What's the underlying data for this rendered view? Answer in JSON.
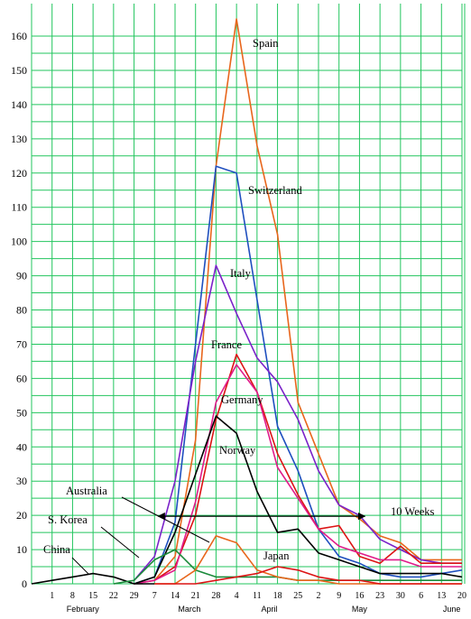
{
  "chart_data": {
    "type": "line",
    "title": "",
    "xlabel": "",
    "ylabel": "",
    "ylim": [
      0,
      165
    ],
    "yticks": [
      0,
      10,
      20,
      30,
      40,
      50,
      60,
      70,
      80,
      90,
      100,
      110,
      120,
      130,
      140,
      150,
      160
    ],
    "grid": true,
    "grid_color": "#22c55e",
    "x_tick_labels": [
      "1",
      "8",
      "15",
      "22",
      "29",
      "7",
      "14",
      "21",
      "28",
      "4",
      "11",
      "18",
      "25",
      "2",
      "9",
      "16",
      "23",
      "30",
      "6",
      "13",
      "20"
    ],
    "months": [
      {
        "label": "February",
        "at": 1.5
      },
      {
        "label": "March",
        "at": 6.7
      },
      {
        "label": "April",
        "at": 10.6
      },
      {
        "label": "May",
        "at": 15.0
      },
      {
        "label": "June",
        "at": 19.5
      }
    ],
    "series": [
      {
        "name": "Spain",
        "color": "#e8661c",
        "values": [
          null,
          null,
          null,
          null,
          null,
          null,
          1,
          8,
          42,
          122,
          165,
          128,
          102,
          53,
          38,
          23,
          19,
          14,
          12,
          7,
          7,
          7
        ]
      },
      {
        "name": "Switzerland",
        "color": "#1f4fbf",
        "values": [
          null,
          null,
          null,
          null,
          null,
          0,
          2,
          18,
          70,
          122,
          120,
          83,
          46,
          33,
          16,
          8,
          6,
          3,
          2,
          2,
          3,
          4
        ]
      },
      {
        "name": "Italy",
        "color": "#7a22c9",
        "values": [
          null,
          null,
          null,
          null,
          null,
          1,
          8,
          30,
          65,
          93,
          79,
          66,
          59,
          48,
          33,
          23,
          20,
          13,
          10,
          7,
          6,
          6
        ]
      },
      {
        "name": "France",
        "color": "#dc1414",
        "values": [
          null,
          null,
          null,
          null,
          null,
          0,
          1,
          5,
          20,
          48,
          67,
          56,
          38,
          26,
          16,
          17,
          8,
          6,
          11,
          6,
          6,
          6
        ]
      },
      {
        "name": "Germany",
        "color": "#e01b8a",
        "values": [
          null,
          null,
          null,
          null,
          null,
          0,
          1,
          4,
          24,
          53,
          64,
          56,
          34,
          25,
          16,
          11,
          9,
          7,
          7,
          5,
          5,
          5
        ]
      },
      {
        "name": "Norway",
        "color": "#000000",
        "values": [
          null,
          null,
          null,
          null,
          null,
          0,
          2,
          15,
          32,
          49,
          44,
          27,
          15,
          16,
          9,
          7,
          5,
          3,
          3,
          3,
          3,
          2
        ]
      },
      {
        "name": "China",
        "color": "#000000",
        "values": [
          0,
          1,
          2,
          3,
          2,
          0,
          0,
          null,
          null,
          null,
          null,
          null,
          null,
          null,
          null,
          null,
          null,
          null,
          null,
          null,
          null,
          null
        ]
      },
      {
        "name": "S. Korea",
        "color": "#1a8a3a",
        "values": [
          null,
          null,
          null,
          null,
          0,
          1,
          7,
          10,
          4,
          2,
          2,
          2,
          2,
          1,
          1,
          1,
          1,
          1,
          1,
          1,
          1,
          1
        ]
      },
      {
        "name": "Australia",
        "color": "#e8661c",
        "values": [
          null,
          null,
          null,
          null,
          null,
          null,
          0,
          0,
          4,
          14,
          12,
          4,
          2,
          1,
          1,
          0,
          0,
          0,
          0,
          0,
          0,
          0
        ]
      },
      {
        "name": "Japan",
        "color": "#dc1414",
        "values": [
          null,
          null,
          null,
          null,
          null,
          null,
          0,
          0,
          0,
          1,
          2,
          3,
          5,
          4,
          2,
          1,
          1,
          0,
          0,
          0,
          0,
          0
        ]
      }
    ],
    "annotations": [
      {
        "text": "Spain",
        "series": "Spain"
      },
      {
        "text": "Switzerland",
        "series": "Switzerland"
      },
      {
        "text": "Italy",
        "series": "Italy"
      },
      {
        "text": "France",
        "series": "France"
      },
      {
        "text": "Germany",
        "series": "Germany"
      },
      {
        "text": "Norway",
        "series": "Norway"
      },
      {
        "text": "Australia",
        "series": "Australia"
      },
      {
        "text": "S. Korea",
        "series": "S. Korea"
      },
      {
        "text": "China",
        "series": "China"
      },
      {
        "text": "Japan",
        "series": "Japan"
      },
      {
        "text": "10 Weeks",
        "arrow_from_x": 6,
        "arrow_to_x": 16,
        "arrow_y": 20
      }
    ]
  }
}
